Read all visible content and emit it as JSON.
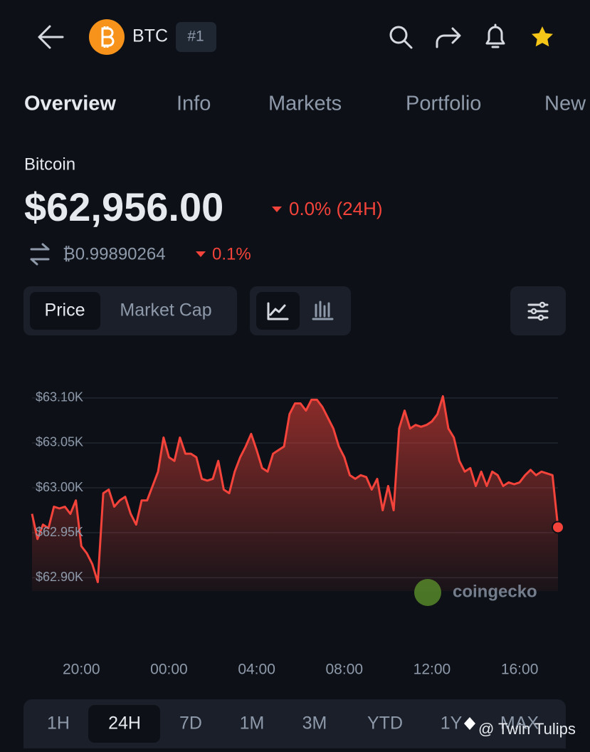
{
  "header": {
    "symbol": "BTC",
    "rank": "#1"
  },
  "tabs": [
    "Overview",
    "Info",
    "Markets",
    "Portfolio",
    "New"
  ],
  "coin": {
    "name": "Bitcoin",
    "price": "$62,956.00",
    "change_24h": "0.0% (24H)",
    "btc_price": "₿0.99890264",
    "btc_change": "0.1%"
  },
  "toggle": [
    "Price",
    "Market Cap"
  ],
  "chart_data": {
    "type": "line",
    "color": "#f4433a",
    "categories": [
      null,
      null,
      null,
      null,
      null,
      null,
      null,
      null,
      null,
      "20:00",
      null,
      null,
      null,
      null,
      null,
      null,
      null,
      null,
      null,
      null,
      null,
      null,
      null,
      null,
      null,
      "00:00",
      null,
      null,
      null,
      null,
      null,
      null,
      null,
      null,
      null,
      null,
      null,
      null,
      null,
      null,
      null,
      "04:00",
      null,
      null,
      null,
      null,
      null,
      null,
      null,
      null,
      null,
      null,
      null,
      null,
      null,
      null,
      null,
      "08:00",
      null,
      null,
      null,
      null,
      null,
      null,
      null,
      null,
      null,
      null,
      null,
      null,
      null,
      null,
      null,
      "12:00",
      null,
      null,
      null,
      null,
      null,
      null,
      null,
      null,
      null,
      null,
      null,
      null,
      null,
      null,
      null,
      "16:00",
      null,
      null,
      null,
      null,
      null,
      null,
      null
    ],
    "values": [
      62971,
      62943,
      62959,
      62955,
      62979,
      62977,
      62979,
      62971,
      62986,
      62935,
      62927,
      62915,
      62895,
      62994,
      62998,
      62979,
      62986,
      62990,
      62971,
      62959,
      62986,
      62986,
      63002,
      63018,
      63056,
      63034,
      63030,
      63056,
      63038,
      63038,
      63034,
      63010,
      63008,
      63010,
      63030,
      62998,
      62994,
      63018,
      63034,
      63046,
      63060,
      63042,
      63022,
      63018,
      63038,
      63042,
      63046,
      63082,
      63094,
      63094,
      63086,
      63098,
      63098,
      63090,
      63078,
      63066,
      63046,
      63034,
      63014,
      63010,
      63014,
      63012,
      62998,
      63010,
      62975,
      63002,
      62975,
      63066,
      63086,
      63066,
      63070,
      63068,
      63070,
      63074,
      63082,
      63102,
      63066,
      63056,
      63030,
      63018,
      63022,
      63002,
      63018,
      63002,
      63018,
      63014,
      63002,
      63006,
      63004,
      63006,
      63014,
      63020,
      63014,
      63018,
      63016,
      63014,
      62956
    ],
    "ylim": [
      62885,
      63115
    ],
    "yticks": [
      {
        "value": 62900,
        "label": "$62.90K"
      },
      {
        "value": 62950,
        "label": "$62.95K"
      },
      {
        "value": 63000,
        "label": "$63.00K"
      },
      {
        "value": 63050,
        "label": "$63.05K"
      },
      {
        "value": 63100,
        "label": "$63.10K"
      }
    ],
    "grid": true
  },
  "ranges": [
    "1H",
    "24H",
    "7D",
    "1M",
    "3M",
    "YTD",
    "1Y",
    "MAX"
  ],
  "watermark": "coingecko",
  "credit": "@ Twin Tulips"
}
